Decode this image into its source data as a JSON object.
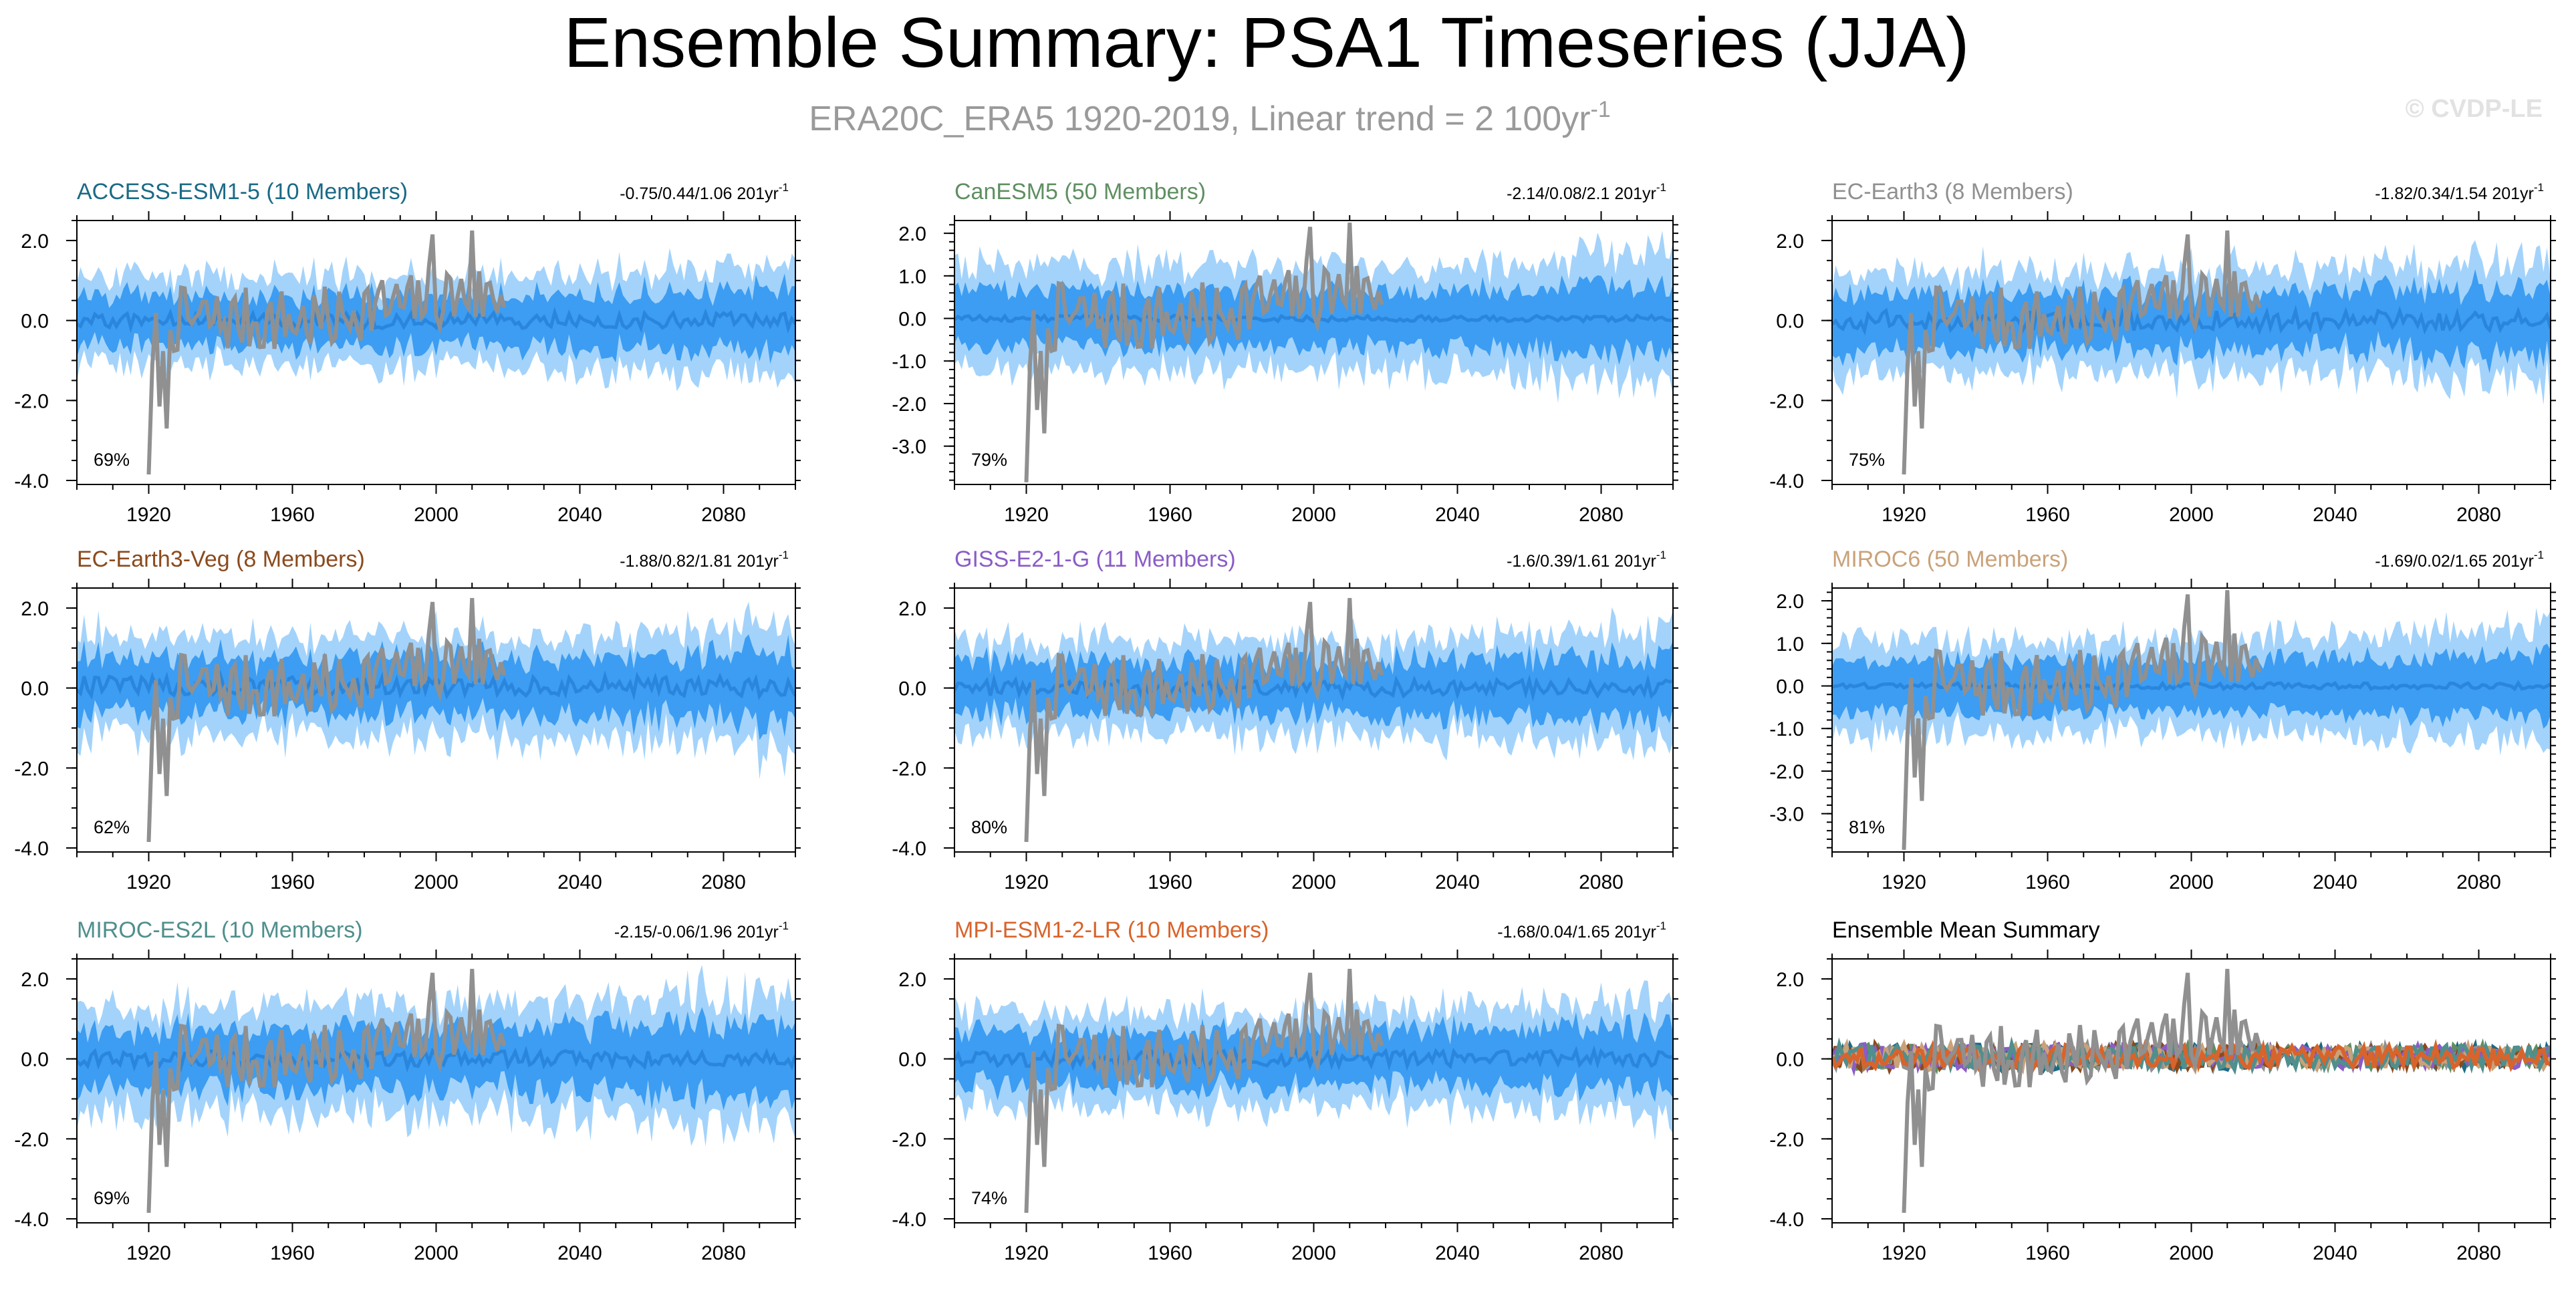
{
  "figure": {
    "title": "Ensemble Summary: PSA1 Timeseries (JJA)",
    "subtitle_main": "ERA20C_ERA5 1920-2019, Linear trend = 2 100yr",
    "subtitle_sup": "-1",
    "watermark": "© CVDP-LE"
  },
  "colors": {
    "outer_band": "#a3d3fb",
    "inner_band": "#3c9df2",
    "ensemble_mean": "#2a86dc",
    "observations": "#909090",
    "frame": "#000000"
  },
  "chart_data": [
    {
      "type": "area",
      "model": "ACCESS-ESM1-5",
      "members_label": "(10 Members)",
      "title_color": "#1b6a86",
      "stat_label": "-0.75/0.44/1.06 201yr",
      "stat_sup": "-1",
      "percent_label": "69%",
      "xlim": [
        1900,
        2100
      ],
      "ylim": [
        -4.1,
        2.5
      ],
      "yticks": [
        -4,
        -2,
        0,
        2
      ],
      "ytick_labels": [
        "-4.0",
        "-2.0",
        "0.0",
        "2.0"
      ],
      "xticks": [
        1920,
        1960,
        2000,
        2040,
        2080
      ],
      "series": [
        {
          "name": "ensemble mean",
          "mean": 0.0,
          "noise": 0.2
        },
        {
          "name": "inner band",
          "spread": 0.62
        },
        {
          "name": "outer band",
          "spread": 1.05
        },
        {
          "name": "observations (ERA20C_ERA5)",
          "years": [
            1920,
            2019
          ]
        }
      ]
    },
    {
      "type": "area",
      "model": "CanESM5",
      "members_label": "(50 Members)",
      "title_color": "#5f8f62",
      "stat_label": "-2.14/0.08/2.1 201yr",
      "stat_sup": "-1",
      "percent_label": "79%",
      "xlim": [
        1900,
        2100
      ],
      "ylim": [
        -3.9,
        2.3
      ],
      "yticks": [
        -3,
        -2,
        -1,
        0,
        1,
        2
      ],
      "ytick_labels": [
        "-3.0",
        "-2.0",
        "-1.0",
        "0.0",
        "1.0",
        "2.0"
      ],
      "xticks": [
        1920,
        1960,
        2000,
        2040,
        2080
      ],
      "series": [
        {
          "name": "ensemble mean",
          "mean": 0.0,
          "noise": 0.07
        },
        {
          "name": "inner band",
          "spread": 0.65
        },
        {
          "name": "outer band",
          "spread": 1.2
        },
        {
          "name": "observations (ERA20C_ERA5)",
          "years": [
            1920,
            2019
          ]
        }
      ]
    },
    {
      "type": "area",
      "model": "EC-Earth3",
      "members_label": "(8 Members)",
      "title_color": "#909090",
      "stat_label": "-1.82/0.34/1.54 201yr",
      "stat_sup": "-1",
      "percent_label": "75%",
      "xlim": [
        1900,
        2100
      ],
      "ylim": [
        -4.1,
        2.5
      ],
      "yticks": [
        -4,
        -2,
        0,
        2
      ],
      "ytick_labels": [
        "-4.0",
        "-2.0",
        "0.0",
        "2.0"
      ],
      "xticks": [
        1920,
        1960,
        2000,
        2040,
        2080
      ],
      "series": [
        {
          "name": "ensemble mean",
          "mean": 0.0,
          "noise": 0.25
        },
        {
          "name": "inner band",
          "spread": 0.7
        },
        {
          "name": "outer band",
          "spread": 1.15
        },
        {
          "name": "observations (ERA20C_ERA5)",
          "years": [
            1920,
            2019
          ]
        }
      ]
    },
    {
      "type": "area",
      "model": "EC-Earth3-Veg",
      "members_label": "(8 Members)",
      "title_color": "#8b4a1c",
      "stat_label": "-1.88/0.82/1.81 201yr",
      "stat_sup": "-1",
      "percent_label": "62%",
      "xlim": [
        1900,
        2100
      ],
      "ylim": [
        -4.1,
        2.5
      ],
      "yticks": [
        -4,
        -2,
        0,
        2
      ],
      "ytick_labels": [
        "-4.0",
        "-2.0",
        "0.0",
        "2.0"
      ],
      "xticks": [
        1920,
        1960,
        2000,
        2040,
        2080
      ],
      "series": [
        {
          "name": "ensemble mean",
          "mean": 0.05,
          "noise": 0.25
        },
        {
          "name": "inner band",
          "spread": 0.7
        },
        {
          "name": "outer band",
          "spread": 1.15
        },
        {
          "name": "observations (ERA20C_ERA5)",
          "years": [
            1920,
            2019
          ]
        }
      ]
    },
    {
      "type": "area",
      "model": "GISS-E2-1-G",
      "members_label": "(11 Members)",
      "title_color": "#8a5cc6",
      "stat_label": "-1.6/0.39/1.61 201yr",
      "stat_sup": "-1",
      "percent_label": "80%",
      "xlim": [
        1900,
        2100
      ],
      "ylim": [
        -4.1,
        2.5
      ],
      "yticks": [
        -4,
        -2,
        0,
        2
      ],
      "ytick_labels": [
        "-4.0",
        "-2.0",
        "0.0",
        "2.0"
      ],
      "xticks": [
        1920,
        1960,
        2000,
        2040,
        2080
      ],
      "series": [
        {
          "name": "ensemble mean",
          "mean": 0.0,
          "noise": 0.2
        },
        {
          "name": "inner band",
          "spread": 0.65
        },
        {
          "name": "outer band",
          "spread": 1.1
        },
        {
          "name": "observations (ERA20C_ERA5)",
          "years": [
            1920,
            2019
          ]
        }
      ]
    },
    {
      "type": "area",
      "model": "MIROC6",
      "members_label": "(50 Members)",
      "title_color": "#c9a27a",
      "stat_label": "-1.69/0.02/1.65 201yr",
      "stat_sup": "-1",
      "percent_label": "81%",
      "xlim": [
        1900,
        2100
      ],
      "ylim": [
        -3.9,
        2.3
      ],
      "yticks": [
        -3,
        -2,
        -1,
        0,
        1,
        2
      ],
      "ytick_labels": [
        "-3.0",
        "-2.0",
        "-1.0",
        "0.0",
        "1.0",
        "2.0"
      ],
      "xticks": [
        1920,
        1960,
        2000,
        2040,
        2080
      ],
      "series": [
        {
          "name": "ensemble mean",
          "mean": 0.0,
          "noise": 0.07
        },
        {
          "name": "inner band",
          "spread": 0.6
        },
        {
          "name": "outer band",
          "spread": 1.05
        },
        {
          "name": "observations (ERA20C_ERA5)",
          "years": [
            1920,
            2019
          ]
        }
      ]
    },
    {
      "type": "area",
      "model": "MIROC-ES2L",
      "members_label": "(10 Members)",
      "title_color": "#4f8f8d",
      "stat_label": "-2.15/-0.06/1.96 201yr",
      "stat_sup": "-1",
      "percent_label": "69%",
      "xlim": [
        1900,
        2100
      ],
      "ylim": [
        -4.1,
        2.5
      ],
      "yticks": [
        -4,
        -2,
        0,
        2
      ],
      "ytick_labels": [
        "-4.0",
        "-2.0",
        "0.0",
        "2.0"
      ],
      "xticks": [
        1920,
        1960,
        2000,
        2040,
        2080
      ],
      "series": [
        {
          "name": "ensemble mean",
          "mean": 0.0,
          "noise": 0.2
        },
        {
          "name": "inner band",
          "spread": 0.75
        },
        {
          "name": "outer band",
          "spread": 1.3
        },
        {
          "name": "observations (ERA20C_ERA5)",
          "years": [
            1920,
            2019
          ]
        }
      ]
    },
    {
      "type": "area",
      "model": "MPI-ESM1-2-LR",
      "members_label": "(10 Members)",
      "title_color": "#d8642c",
      "stat_label": "-1.68/0.04/1.65 201yr",
      "stat_sup": "-1",
      "percent_label": "74%",
      "xlim": [
        1900,
        2100
      ],
      "ylim": [
        -4.1,
        2.5
      ],
      "yticks": [
        -4,
        -2,
        0,
        2
      ],
      "ytick_labels": [
        "-4.0",
        "-2.0",
        "0.0",
        "2.0"
      ],
      "xticks": [
        1920,
        1960,
        2000,
        2040,
        2080
      ],
      "series": [
        {
          "name": "ensemble mean",
          "mean": 0.0,
          "noise": 0.2
        },
        {
          "name": "inner band",
          "spread": 0.65
        },
        {
          "name": "outer band",
          "spread": 1.1
        },
        {
          "name": "observations (ERA20C_ERA5)",
          "years": [
            1920,
            2019
          ]
        }
      ]
    },
    {
      "type": "line",
      "summary": true,
      "title": "Ensemble Mean Summary",
      "xlim": [
        1900,
        2100
      ],
      "ylim": [
        -4.1,
        2.5
      ],
      "yticks": [
        -4,
        -2,
        0,
        2
      ],
      "ytick_labels": [
        "-4.0",
        "-2.0",
        "0.0",
        "2.0"
      ],
      "xticks": [
        1920,
        1960,
        2000,
        2040,
        2080
      ],
      "series": [
        {
          "name": "ACCESS-ESM1-5",
          "color": "#1b6a86"
        },
        {
          "name": "CanESM5",
          "color": "#5f8f62"
        },
        {
          "name": "EC-Earth3",
          "color": "#909090"
        },
        {
          "name": "EC-Earth3-Veg",
          "color": "#8b4a1c"
        },
        {
          "name": "GISS-E2-1-G",
          "color": "#8a5cc6"
        },
        {
          "name": "MIROC6",
          "color": "#c9a27a"
        },
        {
          "name": "MIROC-ES2L",
          "color": "#4f8f8d"
        },
        {
          "name": "MPI-ESM1-2-LR",
          "color": "#d8642c"
        },
        {
          "name": "observations (ERA20C_ERA5)",
          "color": "#909090",
          "years": [
            1920,
            2019
          ]
        }
      ]
    }
  ]
}
